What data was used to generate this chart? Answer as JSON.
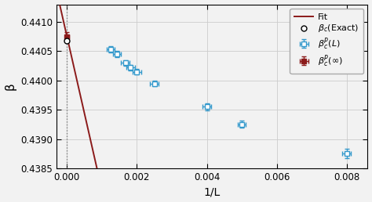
{
  "title": "",
  "xlabel": "1/L",
  "ylabel": "β",
  "xlim": [
    -0.0003,
    0.0086
  ],
  "ylim": [
    0.4385,
    0.4413
  ],
  "yticks": [
    0.4385,
    0.439,
    0.4395,
    0.44,
    0.4405,
    0.441
  ],
  "xticks": [
    0.0,
    0.002,
    0.004,
    0.006,
    0.008
  ],
  "blue_points_x": [
    0.00125,
    0.00143,
    0.00167,
    0.00182,
    0.002,
    0.0025,
    0.004,
    0.005,
    0.008
  ],
  "blue_points_y": [
    0.44053,
    0.44045,
    0.4403,
    0.44022,
    0.44015,
    0.43995,
    0.43955,
    0.43925,
    0.43875
  ],
  "blue_xerr": [
    0.00012,
    0.00012,
    0.00012,
    0.00012,
    0.00012,
    0.00012,
    0.00012,
    0.00012,
    0.00012
  ],
  "blue_yerr": [
    5e-05,
    5e-05,
    5e-05,
    5e-05,
    5e-05,
    5e-05,
    6e-05,
    6e-05,
    8e-05
  ],
  "red_point_x": [
    0.0
  ],
  "red_point_y": [
    0.44075
  ],
  "red_xerr": [
    5e-05
  ],
  "red_yerr": [
    8e-05
  ],
  "exact_point_x": [
    0.0
  ],
  "exact_point_y": [
    0.44068
  ],
  "fit_intercept": 0.44075,
  "fit_slope": -2.625,
  "fit_x_start": -0.0002,
  "fit_x_end": 0.0086,
  "fit_color": "#8B1A1A",
  "blue_color": "#3399cc",
  "red_color": "#8B1A1A",
  "exact_color": "#000000",
  "grid_color": "#cccccc",
  "vline_x": 0.0,
  "bg_color": "#f2f2f2"
}
